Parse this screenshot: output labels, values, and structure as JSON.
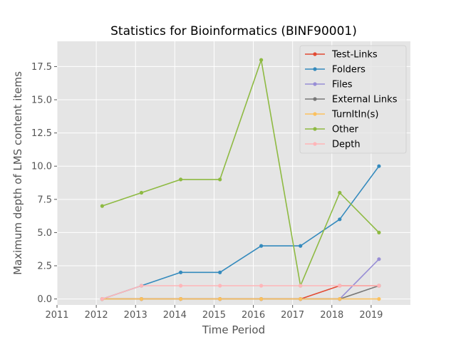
{
  "chart_data": {
    "type": "line",
    "title": "Statistics for Bioinformatics (BINF90001)",
    "xlabel": "Time Period",
    "ylabel": "Maximum depth of LMS content items",
    "x_ticks": [
      "2011",
      "2012",
      "2013",
      "2014",
      "2015",
      "2016",
      "2017",
      "2018",
      "2019"
    ],
    "y_ticks": [
      "0.0",
      "2.5",
      "5.0",
      "7.5",
      "10.0",
      "12.5",
      "15.0",
      "17.5"
    ],
    "xlim": [
      2011,
      2020
    ],
    "ylim": [
      -0.45,
      19.4
    ],
    "grid": true,
    "legend_position": "top-right",
    "x": [
      2012.15,
      2013.15,
      2014.15,
      2015.15,
      2016.2,
      2017.2,
      2018.2,
      2019.2
    ],
    "series": [
      {
        "name": "Test-Links",
        "color": "#E24A33",
        "values": [
          0,
          0,
          0,
          0,
          0,
          0,
          1,
          1
        ]
      },
      {
        "name": "Folders",
        "color": "#348ABD",
        "values": [
          0,
          1,
          2,
          2,
          4,
          4,
          6,
          10
        ]
      },
      {
        "name": "Files",
        "color": "#988ED5",
        "values": [
          0,
          0,
          0,
          0,
          0,
          0,
          0,
          3
        ]
      },
      {
        "name": "External Links",
        "color": "#777777",
        "values": [
          0,
          0,
          0,
          0,
          0,
          0,
          0,
          1
        ]
      },
      {
        "name": "TurnItIn(s)",
        "color": "#FBC15E",
        "values": [
          0,
          0,
          0,
          0,
          0,
          0,
          0,
          0
        ]
      },
      {
        "name": "Other",
        "color": "#8EBA42",
        "values": [
          7,
          8,
          9,
          9,
          18,
          1,
          8,
          5
        ]
      },
      {
        "name": "Depth",
        "color": "#FFB5B8",
        "values": [
          0,
          1,
          1,
          1,
          1,
          1,
          1,
          1
        ]
      }
    ]
  }
}
